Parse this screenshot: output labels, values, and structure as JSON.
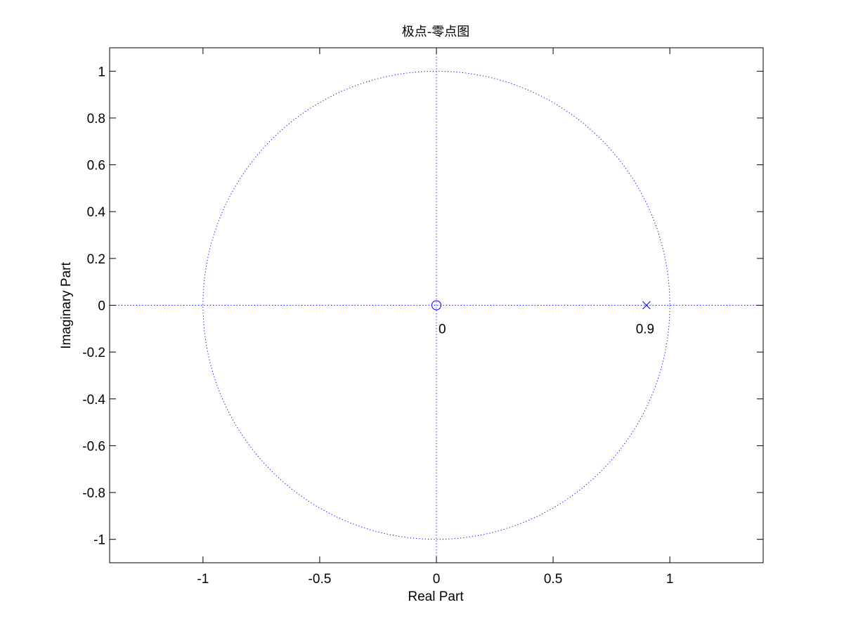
{
  "chart_data": {
    "type": "scatter",
    "title": "极点-零点图",
    "xlabel": "Real Part",
    "ylabel": "Imaginary Part",
    "xlim": [
      -1.4,
      1.4
    ],
    "ylim": [
      -1.1,
      1.1
    ],
    "xticks": [
      -1,
      -0.5,
      0,
      0.5,
      1
    ],
    "xtick_labels": [
      "-1",
      "-0.5",
      "0",
      "0.5",
      "1"
    ],
    "yticks": [
      1,
      0.8,
      0.6,
      0.4,
      0.2,
      0,
      -0.2,
      -0.4,
      -0.6,
      -0.8,
      -1
    ],
    "ytick_labels": [
      "1",
      "0.8",
      "0.6",
      "0.4",
      "0.2",
      "0",
      "-0.2",
      "-0.4",
      "-0.6",
      "-0.8",
      "-1"
    ],
    "grid": false,
    "unit_circle": {
      "radius": 1,
      "style": "dotted"
    },
    "reference_axes": {
      "x": 0,
      "y": 0,
      "style": "dotted"
    },
    "zeros": [
      {
        "re": 0,
        "im": 0,
        "label": "0"
      }
    ],
    "poles": [
      {
        "re": 0.9,
        "im": 0,
        "label": "0.9"
      }
    ],
    "colors": {
      "marker": "#0000ff",
      "guide": "#0000ff",
      "axes": "#000000",
      "background": "#ffffff"
    }
  }
}
